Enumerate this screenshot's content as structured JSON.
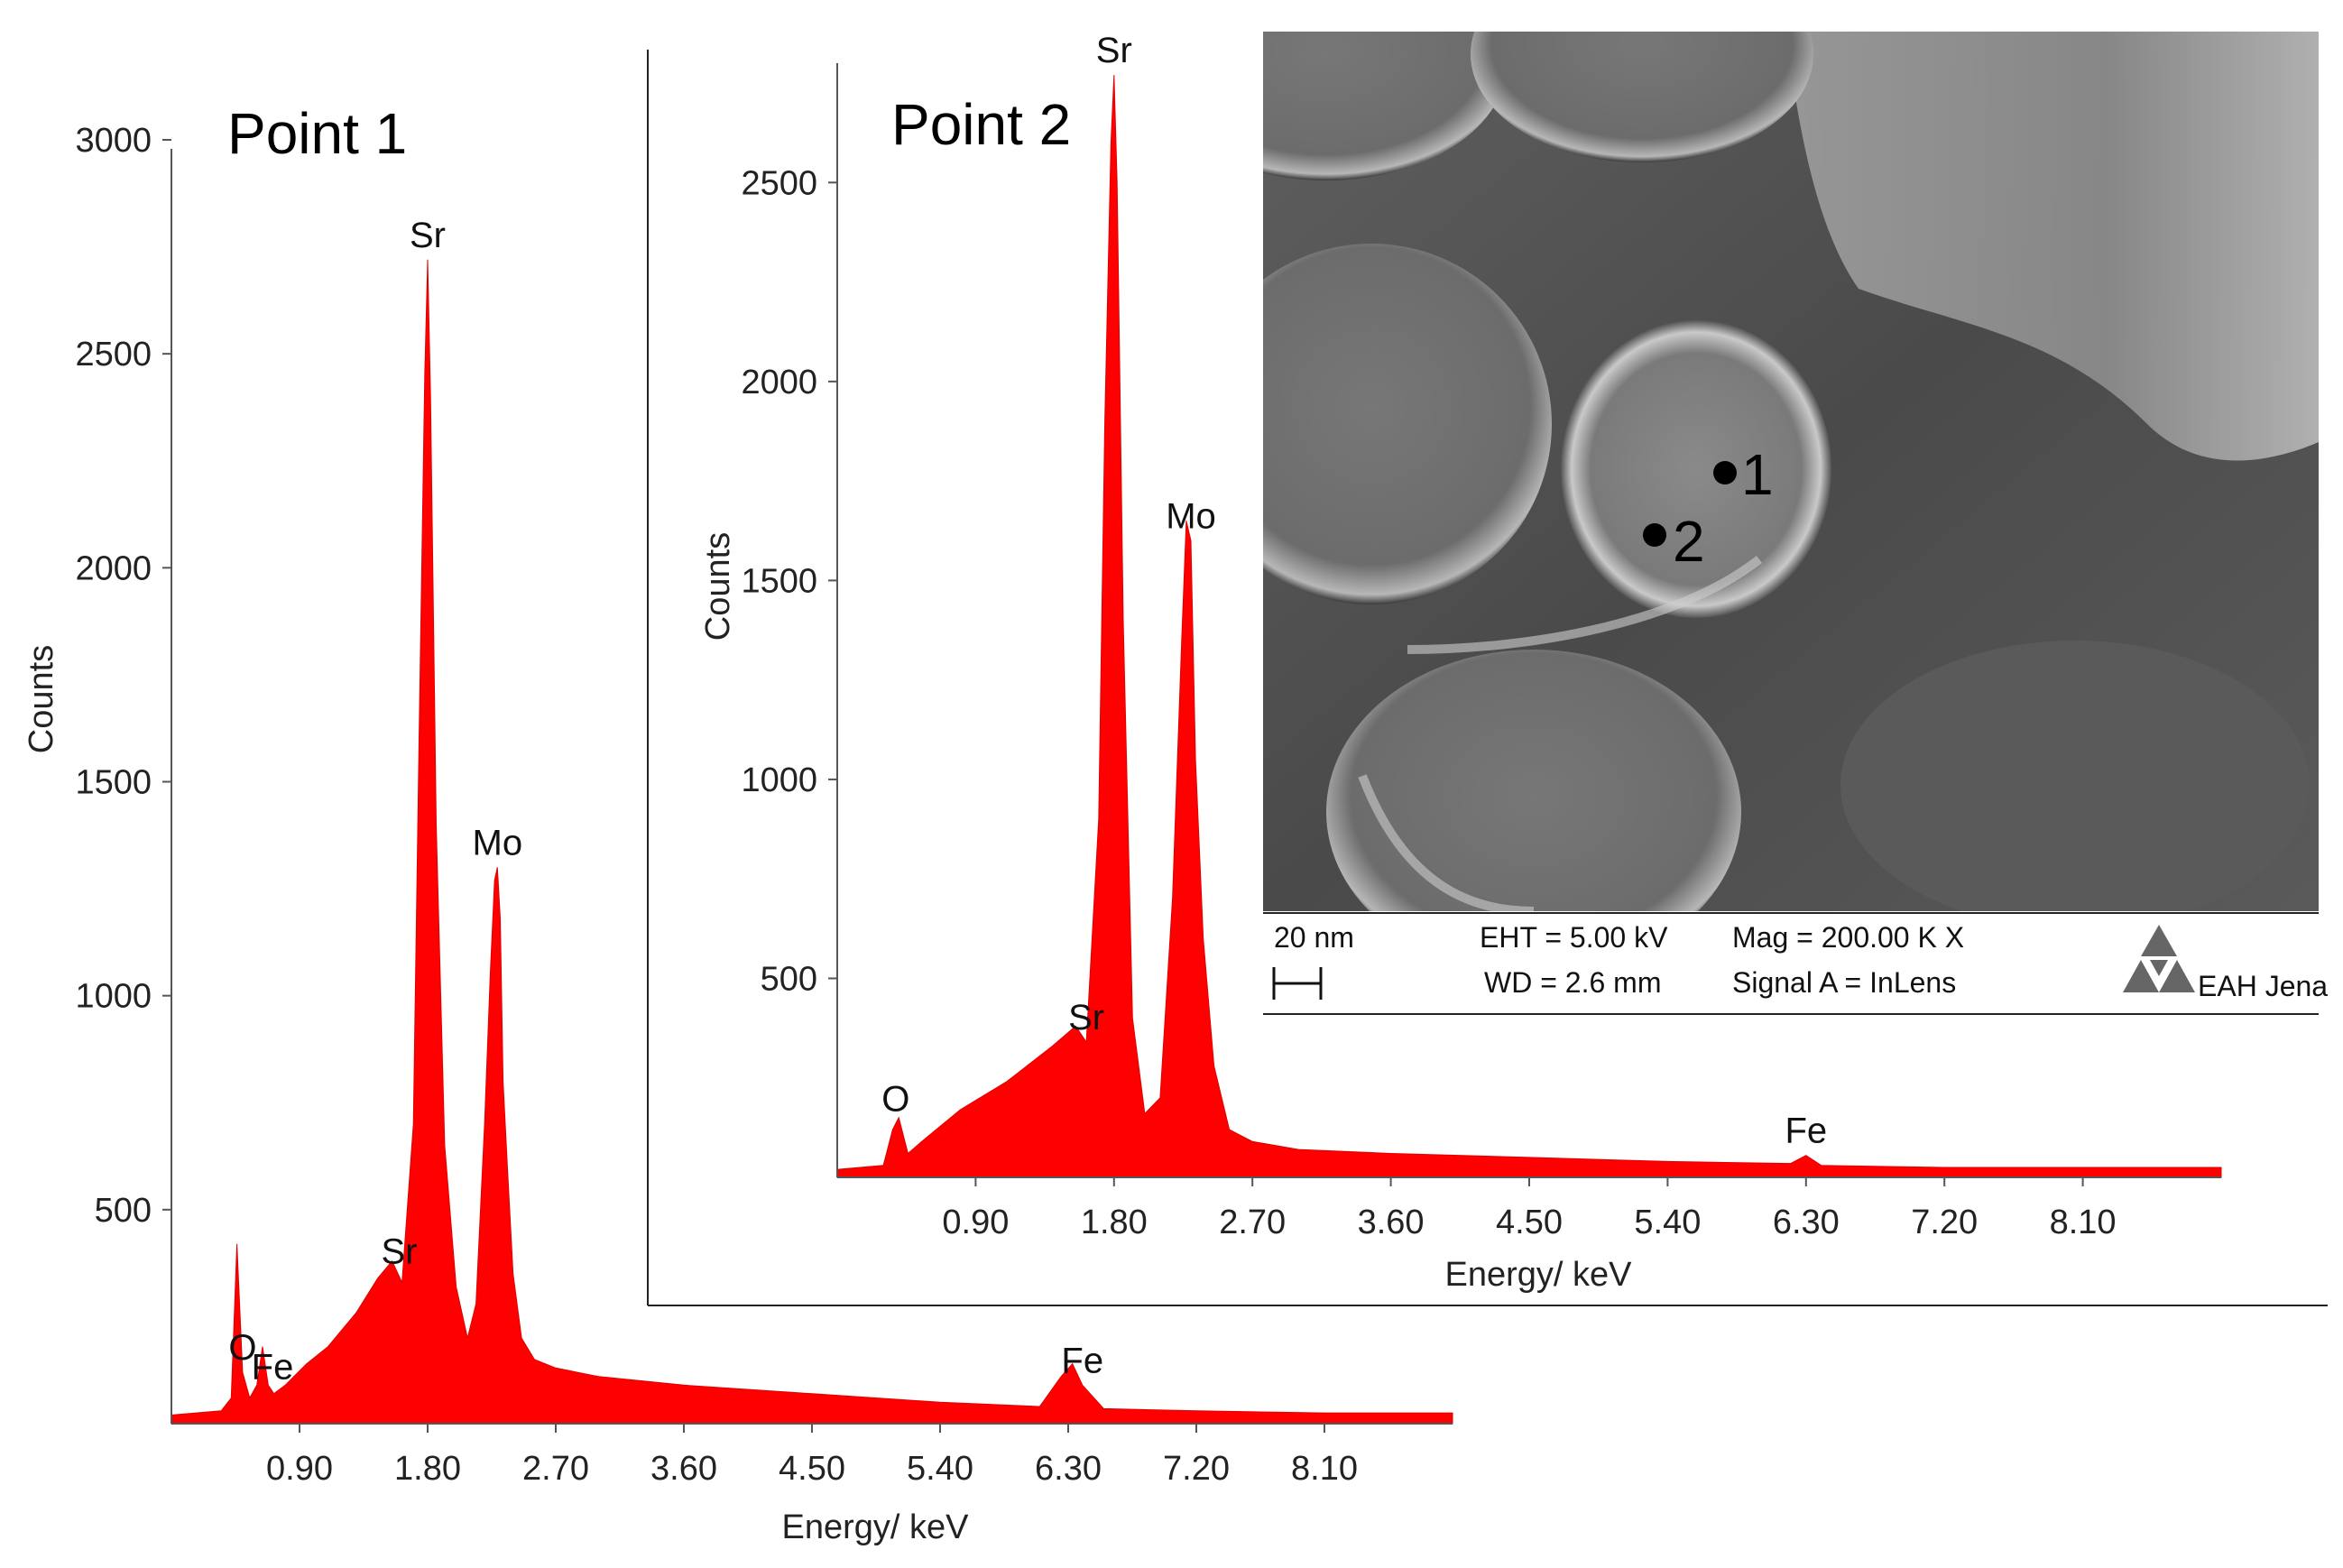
{
  "chart_data": [
    {
      "type": "area",
      "title": "Point 1",
      "xlabel": "Energy/ keV",
      "ylabel": "Counts",
      "color": "#ff0000",
      "xlim": [
        0,
        9.0
      ],
      "ylim": [
        0,
        3000
      ],
      "x_ticks": [
        0.9,
        1.8,
        2.7,
        3.6,
        4.5,
        5.4,
        6.3,
        7.2,
        8.1
      ],
      "x_tick_labels": [
        "0.90",
        "1.80",
        "2.70",
        "3.60",
        "4.50",
        "5.40",
        "6.30",
        "7.20",
        "8.10"
      ],
      "y_ticks": [
        500,
        1000,
        1500,
        2000,
        2500,
        3000
      ],
      "y_tick_labels": [
        "500",
        "1000",
        "1500",
        "2000",
        "2500",
        "3000"
      ],
      "spectrum": {
        "x": [
          0.0,
          0.35,
          0.42,
          0.46,
          0.5,
          0.55,
          0.6,
          0.64,
          0.68,
          0.72,
          0.8,
          0.95,
          1.1,
          1.3,
          1.45,
          1.55,
          1.62,
          1.7,
          1.74,
          1.78,
          1.8,
          1.82,
          1.86,
          1.92,
          2.0,
          2.08,
          2.14,
          2.2,
          2.24,
          2.27,
          2.29,
          2.31,
          2.33,
          2.36,
          2.4,
          2.46,
          2.55,
          2.7,
          3.0,
          3.6,
          4.5,
          5.4,
          6.1,
          6.25,
          6.33,
          6.4,
          6.55,
          7.2,
          8.1,
          9.0
        ],
        "y": [
          20,
          30,
          60,
          420,
          120,
          60,
          90,
          180,
          90,
          70,
          90,
          140,
          180,
          260,
          340,
          380,
          330,
          700,
          1600,
          2450,
          2720,
          2400,
          1400,
          650,
          320,
          200,
          280,
          700,
          1050,
          1270,
          1300,
          1180,
          800,
          600,
          350,
          200,
          150,
          130,
          110,
          90,
          70,
          50,
          40,
          110,
          140,
          90,
          35,
          30,
          25,
          25
        ]
      },
      "peaks": [
        {
          "label": "O",
          "x": 0.5
        },
        {
          "label": "Fe",
          "x": 0.71
        },
        {
          "label": "Sr",
          "x": 1.6
        },
        {
          "label": "Sr",
          "x": 1.8
        },
        {
          "label": "Mo",
          "x": 2.29
        },
        {
          "label": "Fe",
          "x": 6.4
        }
      ]
    },
    {
      "type": "area",
      "title": "Point 2",
      "xlabel": "Energy/ keV",
      "ylabel": "Counts",
      "color": "#ff0000",
      "xlim": [
        0,
        9.0
      ],
      "ylim": [
        0,
        2800
      ],
      "x_ticks": [
        0.9,
        1.8,
        2.7,
        3.6,
        4.5,
        5.4,
        6.3,
        7.2,
        8.1
      ],
      "x_tick_labels": [
        "0.90",
        "1.80",
        "2.70",
        "3.60",
        "4.50",
        "5.40",
        "6.30",
        "7.20",
        "8.10"
      ],
      "y_ticks": [
        500,
        1000,
        1500,
        2000,
        2500
      ],
      "y_tick_labels": [
        "500",
        "1000",
        "1500",
        "2000",
        "2500"
      ],
      "spectrum": {
        "x": [
          0.0,
          0.3,
          0.36,
          0.4,
          0.46,
          0.55,
          0.8,
          1.1,
          1.4,
          1.55,
          1.62,
          1.7,
          1.74,
          1.78,
          1.8,
          1.82,
          1.86,
          1.92,
          2.0,
          2.1,
          2.18,
          2.24,
          2.27,
          2.3,
          2.33,
          2.38,
          2.45,
          2.55,
          2.7,
          3.0,
          3.6,
          4.5,
          5.4,
          6.2,
          6.3,
          6.4,
          7.2,
          8.1,
          9.0
        ],
        "y": [
          20,
          30,
          120,
          150,
          60,
          90,
          170,
          240,
          330,
          380,
          340,
          900,
          1900,
          2600,
          2770,
          2500,
          1400,
          400,
          160,
          200,
          700,
          1350,
          1650,
          1600,
          1050,
          600,
          280,
          120,
          90,
          70,
          60,
          50,
          40,
          35,
          55,
          30,
          25,
          25,
          25
        ]
      },
      "peaks": [
        {
          "label": "O",
          "x": 0.38
        },
        {
          "label": "Sr",
          "x": 1.62
        },
        {
          "label": "Sr",
          "x": 1.8
        },
        {
          "label": "Mo",
          "x": 2.3
        },
        {
          "label": "Fe",
          "x": 6.3
        }
      ]
    }
  ],
  "sem": {
    "scale_label": "20 nm",
    "eht": "EHT =  5.00 kV",
    "wd": "WD =  2.6 mm",
    "mag": "Mag =  200.00 K X",
    "signal": "Signal A = InLens",
    "logo_text": "EAH Jena",
    "markers": [
      {
        "label": "1"
      },
      {
        "label": "2"
      }
    ]
  }
}
